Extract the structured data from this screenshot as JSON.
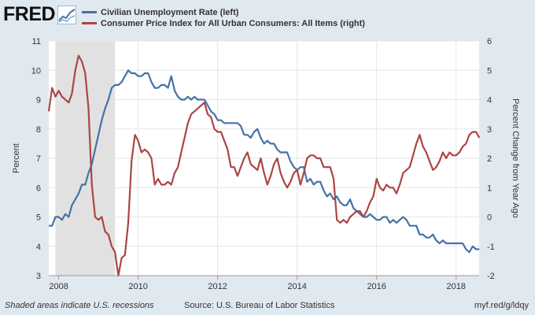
{
  "brand": {
    "logo_text": "FRED"
  },
  "colors": {
    "unemployment": "#4572a7",
    "cpi": "#aa4643",
    "recession": "#e1e1e1",
    "background": "#e1e9f0",
    "plot_bg": "#ffffff",
    "grid": "#e6e6e6"
  },
  "legend": [
    {
      "label": "Civilian Unemployment Rate (left)",
      "color": "#4572a7"
    },
    {
      "label": "Consumer Price Index for All Urban Consumers: All Items (right)",
      "color": "#aa4643"
    }
  ],
  "footer": {
    "recession_note": "Shaded areas indicate U.S. recessions",
    "source": "Source: U.S. Bureau of Labor Statistics",
    "url": "myf.red/g/ldqy"
  },
  "chart_data": {
    "type": "line",
    "xlabel": "",
    "ylabel_left": "Percent",
    "ylabel_right": "Percent Change from Year Ago",
    "x_range": [
      2007.75,
      2018.58
    ],
    "x_ticks": [
      2008,
      2010,
      2012,
      2014,
      2016,
      2018
    ],
    "y_left_range": [
      3,
      11
    ],
    "y_left_ticks": [
      3,
      4,
      5,
      6,
      7,
      8,
      9,
      10,
      11
    ],
    "y_right_range": [
      -2,
      6
    ],
    "y_right_ticks": [
      -2,
      -1,
      0,
      1,
      2,
      3,
      4,
      5,
      6
    ],
    "grid": true,
    "recessions": [
      {
        "start": 2007.917,
        "end": 2009.417
      }
    ],
    "series": [
      {
        "name": "Civilian Unemployment Rate (left)",
        "axis": "left",
        "x": [
          2007.75,
          2007.833,
          2007.917,
          2008.0,
          2008.083,
          2008.167,
          2008.25,
          2008.333,
          2008.417,
          2008.5,
          2008.583,
          2008.667,
          2008.75,
          2008.833,
          2008.917,
          2009.0,
          2009.083,
          2009.167,
          2009.25,
          2009.333,
          2009.417,
          2009.5,
          2009.583,
          2009.667,
          2009.75,
          2009.833,
          2009.917,
          2010.0,
          2010.083,
          2010.167,
          2010.25,
          2010.333,
          2010.417,
          2010.5,
          2010.583,
          2010.667,
          2010.75,
          2010.833,
          2010.917,
          2011.0,
          2011.083,
          2011.167,
          2011.25,
          2011.333,
          2011.417,
          2011.5,
          2011.583,
          2011.667,
          2011.75,
          2011.833,
          2011.917,
          2012.0,
          2012.083,
          2012.167,
          2012.25,
          2012.333,
          2012.417,
          2012.5,
          2012.583,
          2012.667,
          2012.75,
          2012.833,
          2012.917,
          2013.0,
          2013.083,
          2013.167,
          2013.25,
          2013.333,
          2013.417,
          2013.5,
          2013.583,
          2013.667,
          2013.75,
          2013.833,
          2013.917,
          2014.0,
          2014.083,
          2014.167,
          2014.25,
          2014.333,
          2014.417,
          2014.5,
          2014.583,
          2014.667,
          2014.75,
          2014.833,
          2014.917,
          2015.0,
          2015.083,
          2015.167,
          2015.25,
          2015.333,
          2015.417,
          2015.5,
          2015.583,
          2015.667,
          2015.75,
          2015.833,
          2015.917,
          2016.0,
          2016.083,
          2016.167,
          2016.25,
          2016.333,
          2016.417,
          2016.5,
          2016.583,
          2016.667,
          2016.75,
          2016.833,
          2016.917,
          2017.0,
          2017.083,
          2017.167,
          2017.25,
          2017.333,
          2017.417,
          2017.5,
          2017.583,
          2017.667,
          2017.75,
          2017.833,
          2017.917,
          2018.0,
          2018.083,
          2018.167,
          2018.25,
          2018.333,
          2018.417,
          2018.5,
          2018.583
        ],
        "values": [
          4.7,
          4.7,
          5.0,
          5.0,
          4.9,
          5.1,
          5.0,
          5.4,
          5.6,
          5.8,
          6.1,
          6.1,
          6.5,
          6.8,
          7.3,
          7.8,
          8.3,
          8.7,
          9.0,
          9.4,
          9.5,
          9.5,
          9.6,
          9.8,
          10.0,
          9.9,
          9.9,
          9.8,
          9.8,
          9.9,
          9.9,
          9.6,
          9.4,
          9.4,
          9.5,
          9.5,
          9.4,
          9.8,
          9.3,
          9.1,
          9.0,
          9.0,
          9.1,
          9.0,
          9.1,
          9.0,
          9.0,
          9.0,
          8.8,
          8.6,
          8.5,
          8.3,
          8.3,
          8.2,
          8.2,
          8.2,
          8.2,
          8.2,
          8.1,
          7.8,
          7.8,
          7.7,
          7.9,
          8.0,
          7.7,
          7.5,
          7.6,
          7.5,
          7.5,
          7.3,
          7.2,
          7.2,
          7.2,
          6.9,
          6.7,
          6.6,
          6.7,
          6.7,
          6.2,
          6.3,
          6.1,
          6.2,
          6.2,
          5.9,
          5.7,
          5.8,
          5.6,
          5.7,
          5.5,
          5.4,
          5.4,
          5.6,
          5.3,
          5.2,
          5.1,
          5.0,
          5.0,
          5.1,
          5.0,
          4.9,
          4.9,
          5.0,
          5.0,
          4.8,
          4.9,
          4.8,
          4.9,
          5.0,
          4.9,
          4.7,
          4.7,
          4.7,
          4.4,
          4.4,
          4.3,
          4.3,
          4.4,
          4.2,
          4.1,
          4.2,
          4.1,
          4.1,
          4.1,
          4.1,
          4.1,
          4.1,
          3.9,
          3.8,
          4.0,
          3.9,
          3.9
        ]
      },
      {
        "name": "Consumer Price Index for All Urban Consumers: All Items (right)",
        "axis": "right",
        "x": [
          2007.75,
          2007.833,
          2007.917,
          2008.0,
          2008.083,
          2008.167,
          2008.25,
          2008.333,
          2008.417,
          2008.5,
          2008.583,
          2008.667,
          2008.75,
          2008.833,
          2008.917,
          2009.0,
          2009.083,
          2009.167,
          2009.25,
          2009.333,
          2009.417,
          2009.5,
          2009.583,
          2009.667,
          2009.75,
          2009.833,
          2009.917,
          2010.0,
          2010.083,
          2010.167,
          2010.25,
          2010.333,
          2010.417,
          2010.5,
          2010.583,
          2010.667,
          2010.75,
          2010.833,
          2010.917,
          2011.0,
          2011.083,
          2011.167,
          2011.25,
          2011.333,
          2011.417,
          2011.5,
          2011.583,
          2011.667,
          2011.75,
          2011.833,
          2011.917,
          2012.0,
          2012.083,
          2012.167,
          2012.25,
          2012.333,
          2012.417,
          2012.5,
          2012.583,
          2012.667,
          2012.75,
          2012.833,
          2012.917,
          2013.0,
          2013.083,
          2013.167,
          2013.25,
          2013.333,
          2013.417,
          2013.5,
          2013.583,
          2013.667,
          2013.75,
          2013.833,
          2013.917,
          2014.0,
          2014.083,
          2014.167,
          2014.25,
          2014.333,
          2014.417,
          2014.5,
          2014.583,
          2014.667,
          2014.75,
          2014.833,
          2014.917,
          2015.0,
          2015.083,
          2015.167,
          2015.25,
          2015.333,
          2015.417,
          2015.5,
          2015.583,
          2015.667,
          2015.75,
          2015.833,
          2015.917,
          2016.0,
          2016.083,
          2016.167,
          2016.25,
          2016.333,
          2016.417,
          2016.5,
          2016.583,
          2016.667,
          2016.75,
          2016.833,
          2016.917,
          2017.0,
          2017.083,
          2017.167,
          2017.25,
          2017.333,
          2017.417,
          2017.5,
          2017.583,
          2017.667,
          2017.75,
          2017.833,
          2017.917,
          2018.0,
          2018.083,
          2018.167,
          2018.25,
          2018.333,
          2018.417,
          2018.5,
          2018.583
        ],
        "values": [
          3.6,
          4.4,
          4.1,
          4.3,
          4.1,
          4.0,
          3.9,
          4.2,
          5.0,
          5.5,
          5.3,
          4.9,
          3.7,
          1.1,
          0.0,
          -0.1,
          0.0,
          -0.5,
          -0.6,
          -1.0,
          -1.2,
          -2.0,
          -1.4,
          -1.3,
          -0.2,
          1.9,
          2.8,
          2.6,
          2.2,
          2.3,
          2.2,
          2.0,
          1.1,
          1.3,
          1.1,
          1.1,
          1.2,
          1.1,
          1.5,
          1.7,
          2.2,
          2.7,
          3.2,
          3.5,
          3.6,
          3.7,
          3.8,
          3.9,
          3.5,
          3.4,
          3.0,
          2.9,
          2.9,
          2.6,
          2.3,
          1.7,
          1.7,
          1.4,
          1.7,
          2.0,
          2.2,
          1.8,
          1.7,
          1.6,
          2.0,
          1.5,
          1.1,
          1.4,
          1.8,
          2.0,
          1.5,
          1.2,
          1.0,
          1.2,
          1.5,
          1.6,
          1.1,
          1.5,
          2.0,
          2.1,
          2.1,
          2.0,
          2.0,
          1.7,
          1.7,
          1.7,
          1.3,
          -0.1,
          -0.2,
          -0.1,
          -0.2,
          0.0,
          0.1,
          0.2,
          0.2,
          0.0,
          0.2,
          0.5,
          0.7,
          1.3,
          1.0,
          0.9,
          1.1,
          1.0,
          1.0,
          0.8,
          1.1,
          1.5,
          1.6,
          1.7,
          2.1,
          2.5,
          2.8,
          2.4,
          2.2,
          1.9,
          1.6,
          1.7,
          1.9,
          2.2,
          2.0,
          2.2,
          2.1,
          2.1,
          2.2,
          2.4,
          2.5,
          2.8,
          2.9,
          2.9,
          2.7
        ]
      }
    ]
  }
}
